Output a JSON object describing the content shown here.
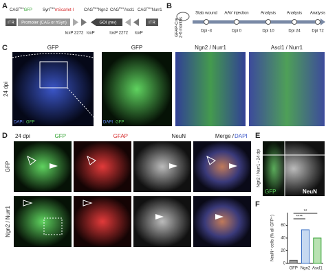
{
  "panel_a": {
    "letter": "A",
    "constructs": [
      {
        "promoter": "CAG",
        "flex": "Flex",
        "gene": "GFP",
        "gene_color": "#2ca02c"
      },
      {
        "promoter": "Syn",
        "flex": "Flex",
        "gene": "mScarlet-I",
        "gene_color": "#d62728"
      },
      {
        "promoter": "CAG",
        "flex": "Flex",
        "gene": "Ngn2",
        "gene_color": "#333333"
      },
      {
        "promoter": "CAG",
        "flex": "Flex",
        "gene": "Ascl1",
        "gene_color": "#333333"
      },
      {
        "promoter": "CAG",
        "flex": "Flex",
        "gene": "Nurr1",
        "gene_color": "#333333"
      }
    ],
    "itr_left": "ITR",
    "promoter_box": "Promoter (CAG or hSyn)",
    "goi": "GOI (rev)",
    "itr_right": "ITR",
    "lox": [
      "loxP 2272",
      "loxP",
      "loxP 2272",
      "loxP"
    ]
  },
  "panel_b": {
    "letter": "B",
    "mouse": "GFAP-Cre",
    "age": "2-6 months",
    "events": [
      "Stab wound",
      "AAV injection",
      "Analysis",
      "Analysis",
      "Analysis"
    ],
    "days": [
      "Dpi -3",
      "Dpi 0",
      "Dpi 10",
      "Dpi 24",
      "Dpi 72"
    ]
  },
  "panel_c": {
    "letter": "C",
    "row_label": "24 dpi",
    "headings": [
      "GFP",
      "GFP",
      "Ngn2 / Nurr1",
      "Ascl1 / Nurr1"
    ],
    "legend_dapi": "DAPI",
    "legend_gfp": "GFP"
  },
  "panel_d": {
    "letter": "D",
    "time": "24 dpi",
    "headings": [
      "GFP",
      "GFAP",
      "NeuN",
      "Merge / "
    ],
    "heading_dapi": "DAPI",
    "rows": [
      "GFP",
      "Ngn2 / Nurr1"
    ]
  },
  "panel_e": {
    "letter": "E",
    "side_label": "Ngn2 / Nurr1 - 24 dpi",
    "gfp": "GFP",
    "neun": "NeuN"
  },
  "panel_f": {
    "letter": "F",
    "chart_data": {
      "type": "bar",
      "ylabel": "NeuN⁺ cells (% all GFP⁺)",
      "categories": [
        "GFP",
        "Ngn2",
        "Ascl1"
      ],
      "values": [
        5,
        53,
        40
      ],
      "colors": [
        "#9e9e9e",
        "#c6d9f1",
        "#b9e2b2"
      ],
      "edge_colors": [
        "#555555",
        "#3a6fc4",
        "#3aa33a"
      ],
      "ylim": [
        0,
        80
      ],
      "yticks": [
        0,
        20,
        40,
        60
      ],
      "significance": [
        "**",
        "****"
      ]
    }
  }
}
